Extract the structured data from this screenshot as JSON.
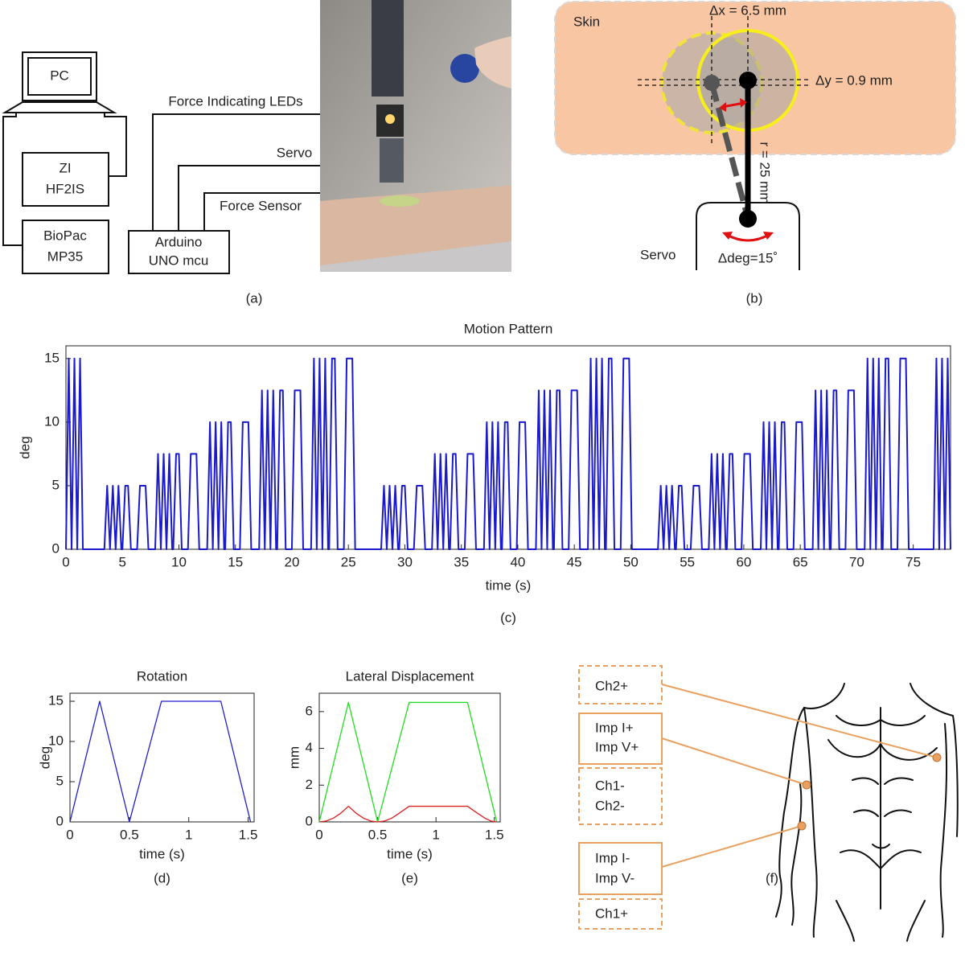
{
  "panel_a": {
    "pc": "PC",
    "zi": [
      "ZI",
      "HF2IS"
    ],
    "biopac": [
      "BioPac",
      "MP35"
    ],
    "arduino": [
      "Arduino",
      "UNO mcu"
    ],
    "leds": "Force Indicating LEDs",
    "servo": "Servo",
    "sensor": "Force Sensor",
    "caption": "(a)"
  },
  "panel_b": {
    "skin": "Skin",
    "dx": "Δx = 6.5 mm",
    "dy": "Δy = 0.9 mm",
    "r": "r = 25 mm",
    "servo": "Servo",
    "ddeg": "Δdeg=15˚",
    "caption": "(b)"
  },
  "chart_data": [
    {
      "type": "line",
      "title": "Motion Pattern",
      "xlabel": "time (s)",
      "ylabel": "deg",
      "caption": "(c)",
      "color": "#1a1acc",
      "xlim": [
        0,
        78.3
      ],
      "xticks": [
        0,
        5,
        10,
        15,
        20,
        25,
        30,
        35,
        40,
        45,
        50,
        55,
        60,
        65,
        70,
        75
      ],
      "ylim": [
        0,
        16
      ],
      "yticks": [
        0,
        5,
        10,
        15
      ],
      "x": [
        0,
        0.25,
        0.5,
        0.75,
        1,
        1.25,
        1.5,
        3.4,
        3.65,
        3.9,
        4.15,
        4.4,
        4.65,
        4.9,
        5.0,
        5.25,
        5.5,
        5.75,
        6.3,
        6.55,
        7.05,
        7.3,
        7.9,
        8.15,
        8.4,
        8.65,
        8.9,
        9.15,
        9.4,
        9.5,
        9.75,
        10.0,
        10.25,
        10.8,
        11.05,
        11.55,
        11.8,
        12.5,
        12.75,
        13.0,
        13.25,
        13.5,
        13.75,
        14.0,
        14.1,
        14.35,
        14.6,
        14.85,
        15.4,
        15.65,
        16.15,
        16.4,
        17.1,
        17.35,
        17.6,
        17.85,
        18.1,
        18.35,
        18.6,
        18.7,
        18.95,
        19.2,
        19.45,
        20.0,
        20.25,
        20.75,
        21.0,
        21.7,
        21.95,
        22.2,
        22.45,
        22.7,
        22.95,
        23.2,
        23.3,
        23.55,
        23.8,
        24.05,
        24.6,
        24.85,
        25.35,
        25.6,
        27.9,
        28.15,
        28.4,
        28.65,
        28.9,
        29.15,
        29.4,
        29.5,
        29.75,
        30.0,
        30.25,
        30.8,
        31.05,
        31.55,
        31.8,
        32.4,
        32.65,
        32.9,
        33.15,
        33.4,
        33.65,
        33.9,
        34.0,
        34.25,
        34.5,
        34.75,
        35.3,
        35.55,
        36.05,
        36.3,
        37.0,
        37.25,
        37.5,
        37.75,
        38.0,
        38.25,
        38.5,
        38.6,
        38.85,
        39.1,
        39.35,
        39.9,
        40.15,
        40.65,
        40.9,
        41.6,
        41.85,
        42.1,
        42.35,
        42.6,
        42.85,
        43.1,
        43.2,
        43.45,
        43.7,
        43.95,
        44.5,
        44.75,
        45.25,
        45.5,
        46.2,
        46.45,
        46.7,
        46.95,
        47.2,
        47.45,
        47.7,
        47.8,
        48.05,
        48.3,
        48.55,
        49.1,
        49.35,
        49.85,
        50.1,
        52.4,
        52.65,
        52.9,
        53.15,
        53.4,
        53.65,
        53.9,
        54.0,
        54.25,
        54.5,
        54.75,
        55.3,
        55.55,
        56.05,
        56.3,
        56.9,
        57.15,
        57.4,
        57.65,
        57.9,
        58.15,
        58.4,
        58.5,
        58.75,
        59.0,
        59.25,
        59.8,
        60.05,
        60.55,
        60.8,
        61.5,
        61.75,
        62.0,
        62.25,
        62.5,
        62.75,
        63.0,
        63.1,
        63.35,
        63.6,
        63.85,
        64.4,
        64.65,
        65.15,
        65.4,
        66.1,
        66.35,
        66.6,
        66.85,
        67.1,
        67.35,
        67.6,
        67.7,
        67.95,
        68.2,
        68.45,
        69.0,
        69.25,
        69.75,
        70.0,
        70.7,
        70.95,
        71.2,
        71.45,
        71.7,
        71.95,
        72.2,
        72.3,
        72.55,
        72.8,
        73.05,
        73.6,
        73.85,
        74.35,
        74.6,
        76.8,
        77.05,
        77.3,
        77.55,
        77.8,
        78.05,
        78.3
      ],
      "values": [
        0,
        15,
        0,
        15,
        0,
        15,
        0,
        0,
        5,
        0,
        5,
        0,
        5,
        0,
        0,
        5,
        5,
        0,
        0,
        5,
        5,
        0,
        0,
        7.5,
        0,
        7.5,
        0,
        7.5,
        0,
        0,
        7.5,
        7.5,
        0,
        0,
        7.5,
        7.5,
        0,
        0,
        10,
        0,
        10,
        0,
        10,
        0,
        0,
        10,
        10,
        0,
        0,
        10,
        10,
        0,
        0,
        12.5,
        0,
        12.5,
        0,
        12.5,
        0,
        0,
        12.5,
        12.5,
        0,
        0,
        12.5,
        12.5,
        0,
        0,
        15,
        0,
        15,
        0,
        15,
        0,
        0,
        15,
        15,
        0,
        0,
        15,
        15,
        0,
        0,
        5,
        0,
        5,
        0,
        5,
        0,
        0,
        5,
        5,
        0,
        0,
        5,
        5,
        0,
        0,
        7.5,
        0,
        7.5,
        0,
        7.5,
        0,
        0,
        7.5,
        7.5,
        0,
        0,
        7.5,
        7.5,
        0,
        0,
        10,
        0,
        10,
        0,
        10,
        0,
        0,
        10,
        10,
        0,
        0,
        10,
        10,
        0,
        0,
        12.5,
        0,
        12.5,
        0,
        12.5,
        0,
        0,
        12.5,
        12.5,
        0,
        0,
        12.5,
        12.5,
        0,
        0,
        15,
        0,
        15,
        0,
        15,
        0,
        0,
        15,
        15,
        0,
        0,
        15,
        15,
        0,
        0,
        5,
        0,
        5,
        0,
        5,
        0,
        0,
        5,
        5,
        0,
        0,
        5,
        5,
        0,
        0,
        7.5,
        0,
        7.5,
        0,
        7.5,
        0,
        0,
        7.5,
        7.5,
        0,
        0,
        7.5,
        7.5,
        0,
        0,
        10,
        0,
        10,
        0,
        10,
        0,
        0,
        10,
        10,
        0,
        0,
        10,
        10,
        0,
        0,
        12.5,
        0,
        12.5,
        0,
        12.5,
        0,
        0,
        12.5,
        12.5,
        0,
        0,
        12.5,
        12.5,
        0,
        0,
        15,
        0,
        15,
        0,
        15,
        0,
        0,
        15,
        15,
        0,
        0,
        15,
        15,
        0,
        0,
        15,
        0,
        15,
        0,
        15,
        0
      ]
    },
    {
      "type": "line",
      "title": "Rotation",
      "xlabel": "time (s)",
      "ylabel": "deg",
      "caption": "(d)",
      "color": "#2020cc",
      "xlim": [
        0,
        1.55
      ],
      "xticks": [
        0,
        0.5,
        1,
        1.5
      ],
      "ylim": [
        0,
        16
      ],
      "yticks": [
        0,
        5,
        10,
        15
      ],
      "x": [
        0,
        0.25,
        0.5,
        0.77,
        1.27,
        1.52
      ],
      "values": [
        0,
        15,
        0,
        15,
        15,
        0
      ]
    },
    {
      "type": "line",
      "title": "Lateral Displacement",
      "xlabel": "time (s)",
      "ylabel": "mm",
      "caption": "(e)",
      "xlim": [
        0,
        1.55
      ],
      "xticks": [
        0,
        0.5,
        1,
        1.5
      ],
      "ylim": [
        0,
        7
      ],
      "yticks": [
        0,
        2,
        4,
        6
      ],
      "series": [
        {
          "color": "#22dd22",
          "x": [
            0,
            0.25,
            0.5,
            0.77,
            1.27,
            1.52
          ],
          "values": [
            0,
            6.5,
            0,
            6.5,
            6.5,
            0
          ]
        },
        {
          "color": "#dd2020",
          "x": [
            0,
            0.06,
            0.12,
            0.18,
            0.25,
            0.32,
            0.38,
            0.44,
            0.5,
            0.56,
            0.62,
            0.68,
            0.77,
            1.27,
            1.36,
            1.42,
            1.47,
            1.52
          ],
          "values": [
            0,
            0.05,
            0.2,
            0.45,
            0.85,
            0.45,
            0.2,
            0.05,
            0,
            0.05,
            0.2,
            0.45,
            0.85,
            0.85,
            0.45,
            0.2,
            0.05,
            0
          ]
        }
      ]
    }
  ],
  "panel_f": {
    "electrodes": [
      [
        "Ch2+"
      ],
      [
        "Imp I+",
        "Imp V+"
      ],
      [
        "Ch1-",
        "Ch2-"
      ],
      [
        "Imp I-",
        "Imp V-"
      ],
      [
        "Ch1+"
      ]
    ],
    "caption": "(f)"
  }
}
